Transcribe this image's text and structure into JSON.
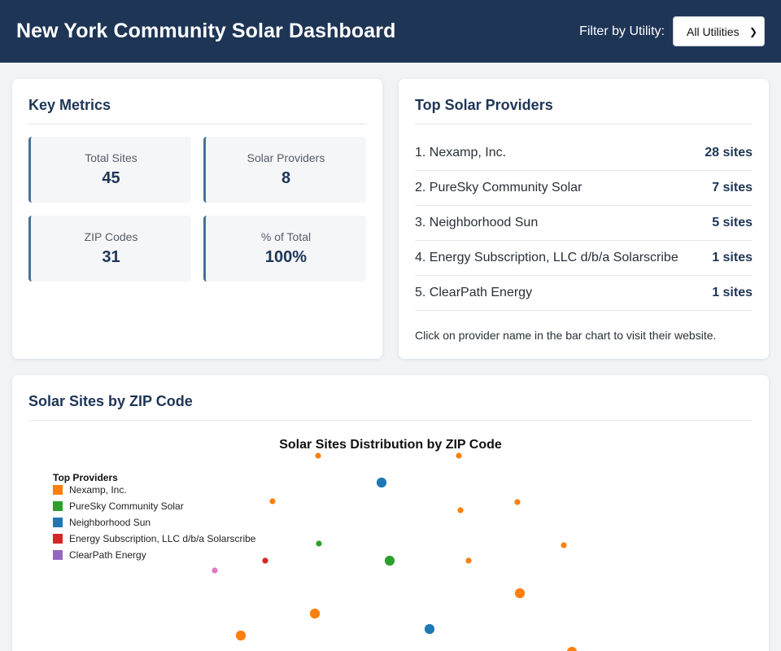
{
  "header": {
    "title": "New York Community Solar Dashboard",
    "filter_label": "Filter by Utility:",
    "filter_value": "All Utilities"
  },
  "metrics": {
    "title": "Key Metrics",
    "items": [
      {
        "label": "Total Sites",
        "value": "45"
      },
      {
        "label": "Solar Providers",
        "value": "8"
      },
      {
        "label": "ZIP Codes",
        "value": "31"
      },
      {
        "label": "% of Total",
        "value": "100%"
      }
    ]
  },
  "providers": {
    "title": "Top Solar Providers",
    "items": [
      {
        "name": "1. Nexamp, Inc.",
        "count": "28 sites"
      },
      {
        "name": "2. PureSky Community Solar",
        "count": "7 sites"
      },
      {
        "name": "3. Neighborhood Sun",
        "count": "5 sites"
      },
      {
        "name": "4. Energy Subscription, LLC d/b/a Solarscribe",
        "count": "1 sites"
      },
      {
        "name": "5. ClearPath Energy",
        "count": "1 sites"
      }
    ],
    "note": "Click on provider name in the bar chart to visit their website."
  },
  "zip_section": {
    "title": "Solar Sites by ZIP Code"
  },
  "colors": {
    "nexamp": "#ff7f0e",
    "puresky": "#2ca02c",
    "neighborhood": "#1f77b4",
    "solarscribe": "#d62728",
    "clearpath": "#9467bd",
    "other": "#e377c2"
  },
  "chart_data": {
    "type": "scatter",
    "title": "Solar Sites Distribution by ZIP Code",
    "legend_title": "Top Providers",
    "legend_position": "top-left",
    "legend": [
      {
        "name": "Nexamp, Inc.",
        "color": "#ff7f0e"
      },
      {
        "name": "PureSky Community Solar",
        "color": "#2ca02c"
      },
      {
        "name": "Neighborhood Sun",
        "color": "#1f77b4"
      },
      {
        "name": "Energy Subscription, LLC d/b/a Solarscribe",
        "color": "#d62728"
      },
      {
        "name": "ClearPath Energy",
        "color": "#9467bd"
      }
    ],
    "points": [
      {
        "provider": "Nexamp, Inc.",
        "sites": 1
      },
      {
        "provider": "Nexamp, Inc.",
        "sites": 1
      },
      {
        "provider": "Neighborhood Sun",
        "sites": 2
      },
      {
        "provider": "Nexamp, Inc.",
        "sites": 1
      },
      {
        "provider": "Nexamp, Inc.",
        "sites": 1
      },
      {
        "provider": "Nexamp, Inc.",
        "sites": 1
      },
      {
        "provider": "PureSky Community Solar",
        "sites": 1
      },
      {
        "provider": "Nexamp, Inc.",
        "sites": 1
      },
      {
        "provider": "Energy Subscription, LLC d/b/a Solarscribe",
        "sites": 1
      },
      {
        "provider": "PureSky Community Solar",
        "sites": 2
      },
      {
        "provider": "Nexamp, Inc.",
        "sites": 1
      },
      {
        "provider": "Other",
        "sites": 1
      },
      {
        "provider": "Nexamp, Inc.",
        "sites": 2
      },
      {
        "provider": "Nexamp, Inc.",
        "sites": 2
      },
      {
        "provider": "Neighborhood Sun",
        "sites": 2
      },
      {
        "provider": "Nexamp, Inc.",
        "sites": 2
      },
      {
        "provider": "Nexamp, Inc.",
        "sites": 2
      }
    ]
  }
}
